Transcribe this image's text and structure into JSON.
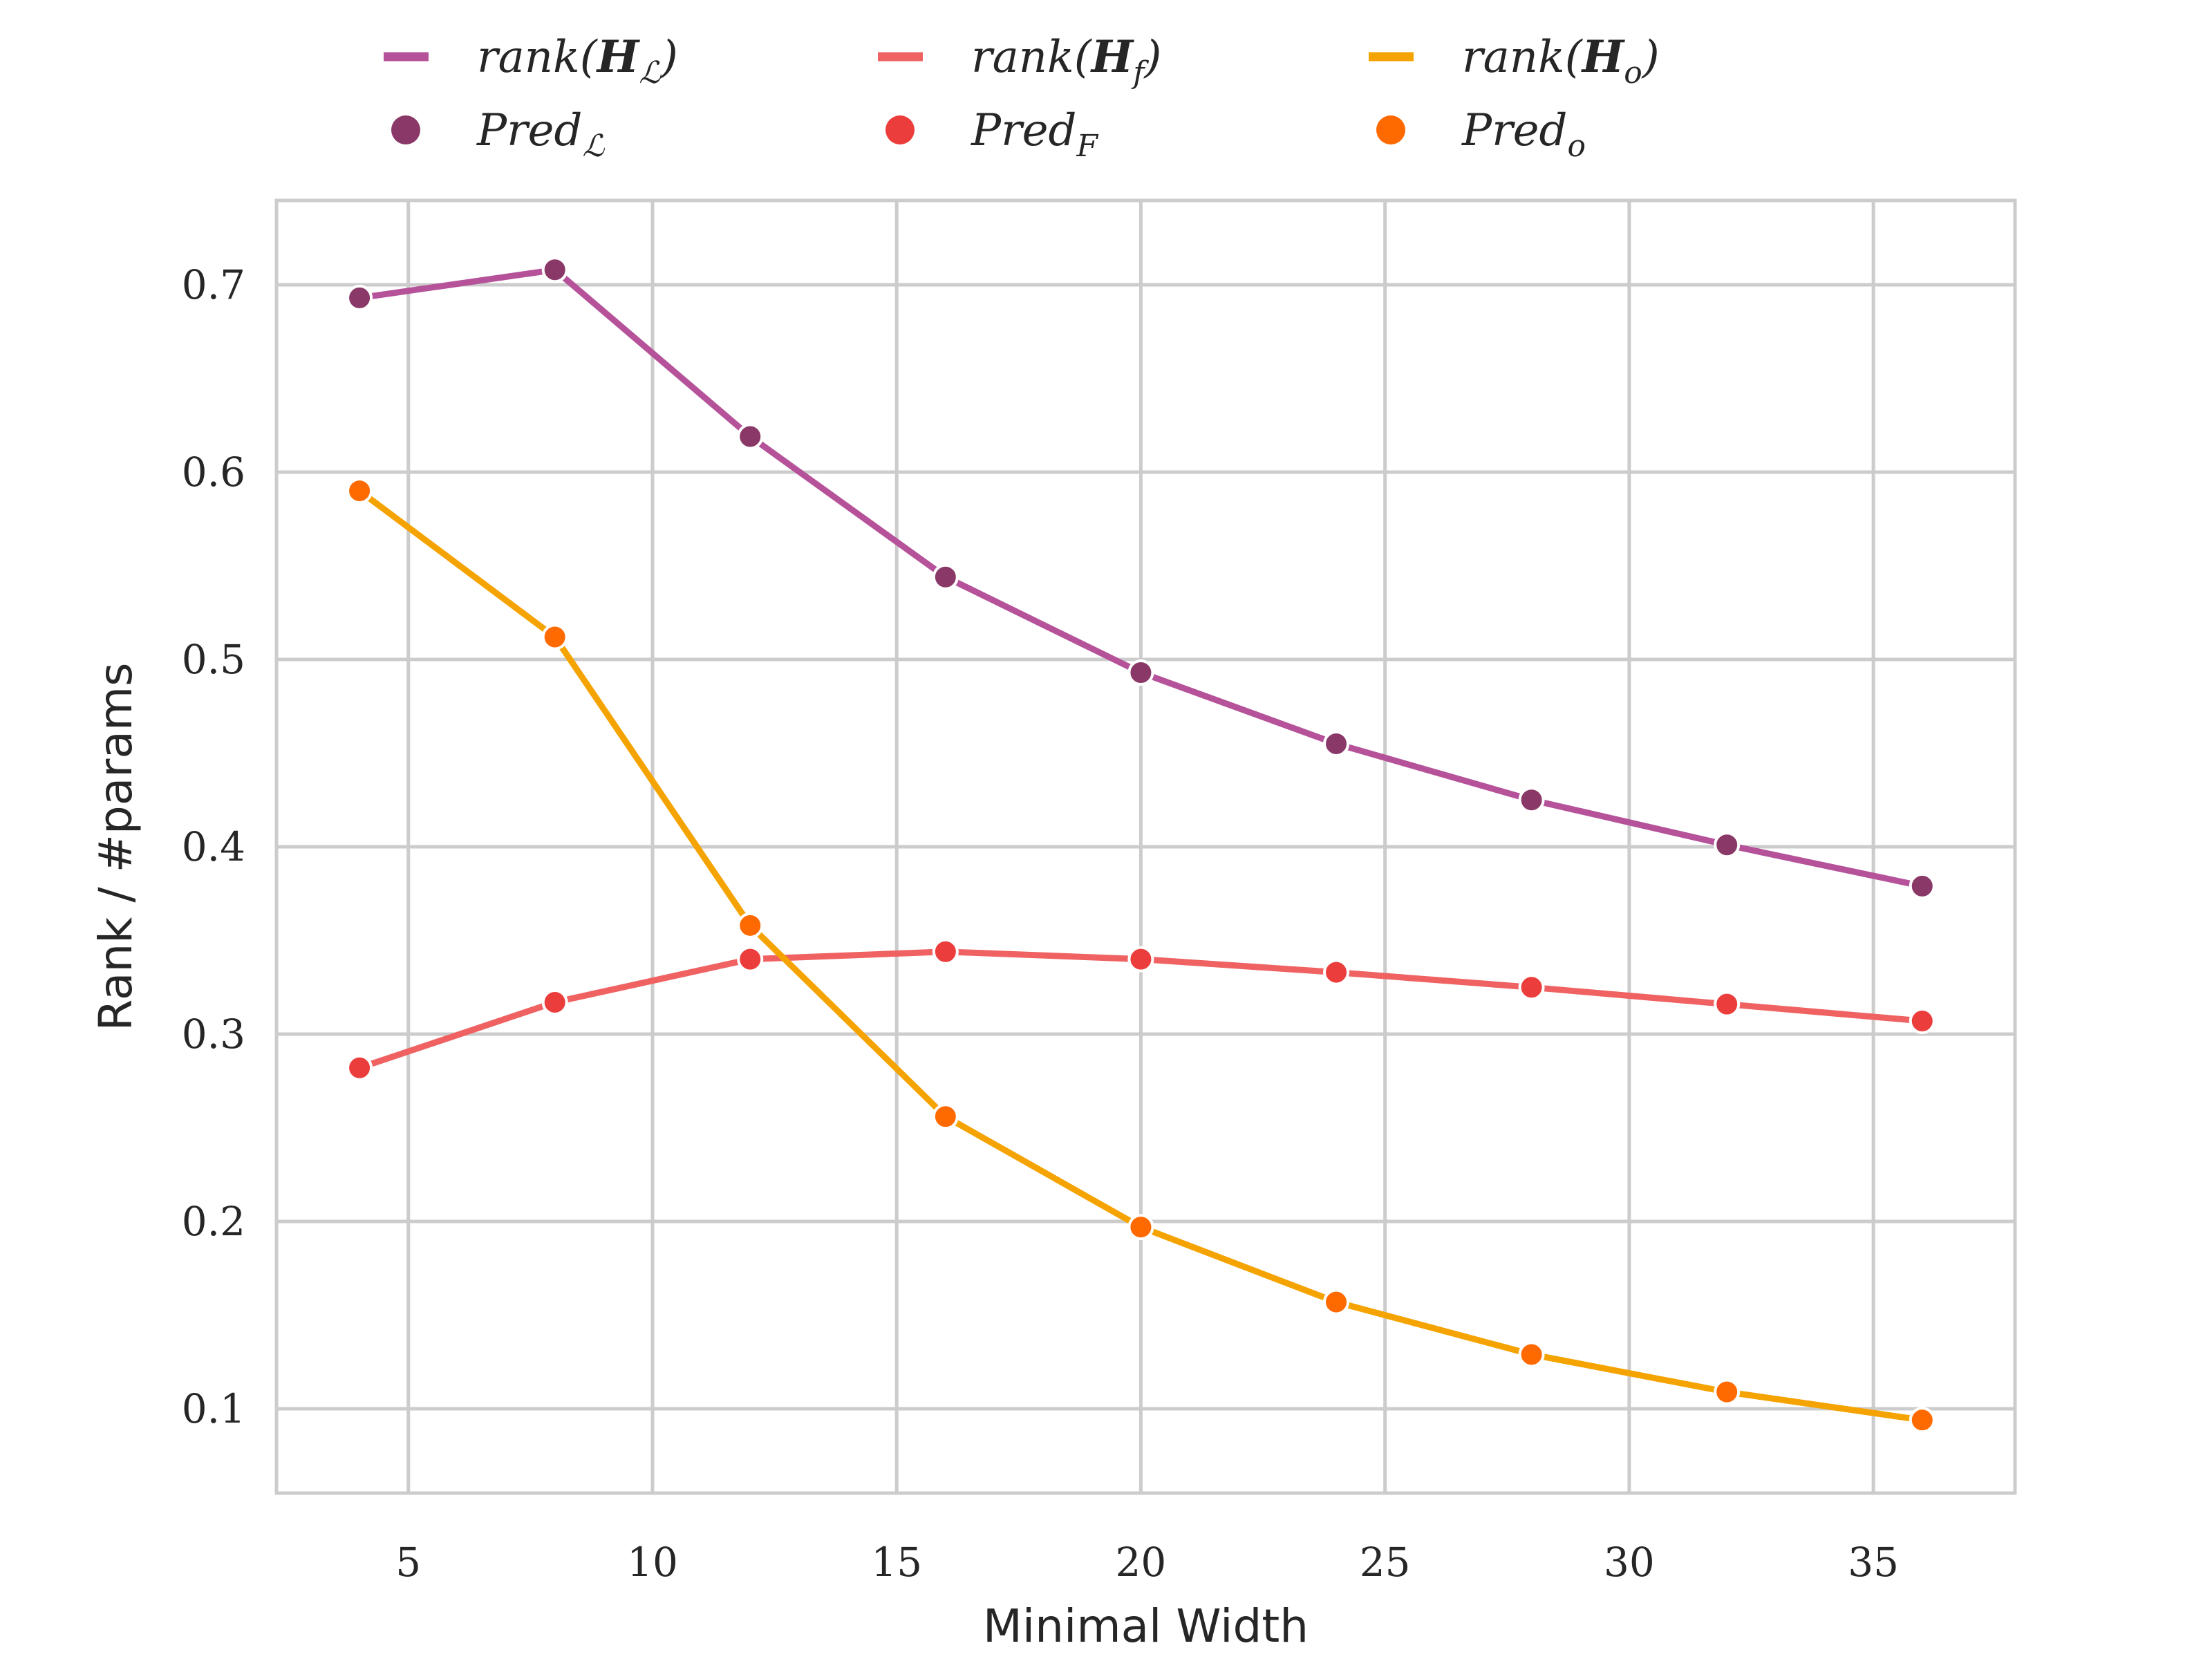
{
  "chart_data": {
    "type": "line",
    "title": "",
    "xlabel": "Minimal Width",
    "ylabel": "Rank / #params",
    "xlim": [
      2.3,
      37.9
    ],
    "ylim": [
      0.055,
      0.745
    ],
    "xticks": [
      5,
      10,
      15,
      20,
      25,
      30,
      35
    ],
    "yticks": [
      0.1,
      0.2,
      0.3,
      0.4,
      0.5,
      0.6,
      0.7
    ],
    "xtick_labels": [
      "5",
      "10",
      "15",
      "20",
      "25",
      "30",
      "35"
    ],
    "ytick_labels": [
      "0.1",
      "0.2",
      "0.3",
      "0.4",
      "0.5",
      "0.6",
      "0.7"
    ],
    "grid": true,
    "legend_position": "top-center",
    "x": [
      4,
      8,
      12,
      16,
      20,
      24,
      28,
      32,
      36
    ],
    "series": [
      {
        "key": "L",
        "line_label": {
          "pre": "rank(",
          "base": "H",
          "sub": "ℒ",
          "post": ")"
        },
        "marker_label": {
          "base": "Pred",
          "sub": "ℒ"
        },
        "line_color": "#b5529a",
        "marker_color": "#8a3868",
        "values": [
          0.693,
          0.708,
          0.619,
          0.544,
          0.493,
          0.455,
          0.425,
          0.401,
          0.379
        ],
        "pred_values": [
          0.693,
          0.708,
          0.619,
          0.544,
          0.493,
          0.455,
          0.425,
          0.401,
          0.379
        ]
      },
      {
        "key": "F",
        "line_label": {
          "pre": "rank(",
          "base": "H",
          "sub": "f",
          "post": ")"
        },
        "marker_label": {
          "base": "Pred",
          "sub": "F"
        },
        "line_color": "#f06262",
        "marker_color": "#ec3d3d",
        "values": [
          0.282,
          0.317,
          0.34,
          0.344,
          0.34,
          0.333,
          0.325,
          0.316,
          0.307
        ],
        "pred_values": [
          0.282,
          0.317,
          0.34,
          0.344,
          0.34,
          0.333,
          0.325,
          0.316,
          0.307
        ]
      },
      {
        "key": "o",
        "line_label": {
          "pre": "rank(",
          "base": "H",
          "sub": "o",
          "post": ")"
        },
        "marker_label": {
          "base": "Pred",
          "sub": "o"
        },
        "line_color": "#f5a300",
        "marker_color": "#ff6a00",
        "values": [
          0.59,
          0.512,
          0.358,
          0.256,
          0.197,
          0.157,
          0.129,
          0.109,
          0.094
        ],
        "pred_values": [
          0.59,
          0.512,
          0.358,
          0.256,
          0.197,
          0.157,
          0.129,
          0.109,
          0.094
        ]
      }
    ]
  }
}
